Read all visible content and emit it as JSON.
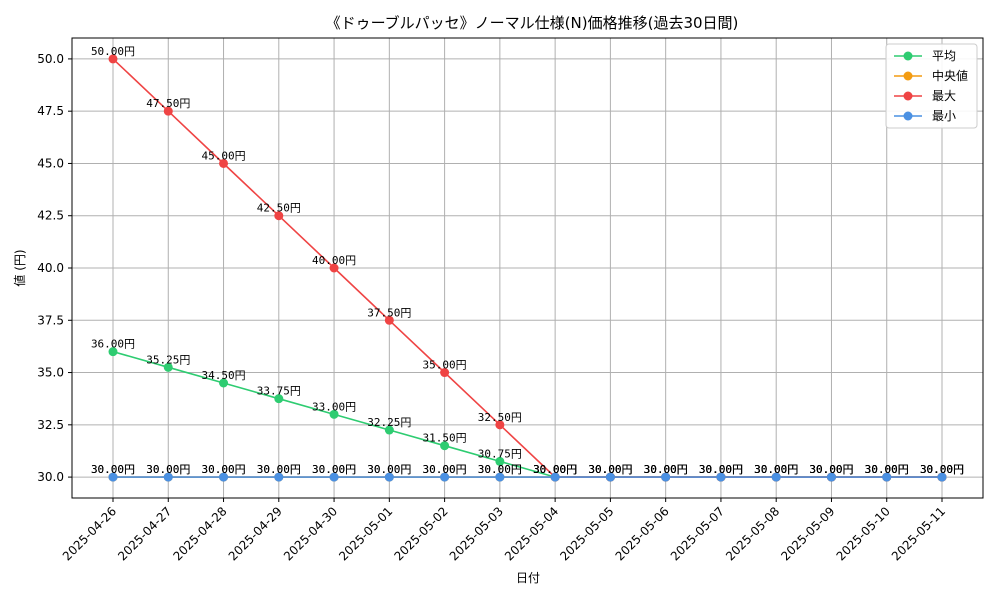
{
  "chart_data": {
    "type": "line",
    "title": "《ドゥーブルパッセ》ノーマル仕様(N)価格推移(過去30日間)",
    "xlabel": "日付",
    "ylabel": "値 (円)",
    "ylim": [
      29.0,
      51.0
    ],
    "yticks": [
      "30.0",
      "32.5",
      "35.0",
      "37.5",
      "40.0",
      "42.5",
      "45.0",
      "47.5",
      "50.0"
    ],
    "grid": true,
    "legend_position": "top-right",
    "unit_suffix": "円",
    "categories": [
      "2025-04-26",
      "2025-04-27",
      "2025-04-28",
      "2025-04-29",
      "2025-04-30",
      "2025-05-01",
      "2025-05-02",
      "2025-05-03",
      "2025-05-04",
      "2025-05-05",
      "2025-05-06",
      "2025-05-07",
      "2025-05-08",
      "2025-05-09",
      "2025-05-10",
      "2025-05-11"
    ],
    "series": [
      {
        "name": "平均",
        "color": "#2ecc71",
        "values": [
          36.0,
          35.25,
          34.5,
          33.75,
          33.0,
          32.25,
          31.5,
          30.75,
          30.0,
          30.0,
          30.0,
          30.0,
          30.0,
          30.0,
          30.0,
          30.0
        ],
        "labels": [
          "36.00円",
          "35.25円",
          "34.50円",
          "33.75円",
          "33.00円",
          "32.25円",
          "31.50円",
          "30.75円",
          "30.00円",
          "30.00円",
          "30.00円",
          "30.00円",
          "30.00円",
          "30.00円",
          "30.00円",
          "30.00円"
        ]
      },
      {
        "name": "中央値",
        "color": "#f39c12",
        "values": [
          30.0,
          30.0,
          30.0,
          30.0,
          30.0,
          30.0,
          30.0,
          30.0,
          30.0,
          30.0,
          30.0,
          30.0,
          30.0,
          30.0,
          30.0,
          30.0
        ],
        "labels": [
          "30.00円",
          "30.00円",
          "30.00円",
          "30.00円",
          "30.00円",
          "30.00円",
          "30.00円",
          "30.00円",
          "30.00円",
          "30.00円",
          "30.00円",
          "30.00円",
          "30.00円",
          "30.00円",
          "30.00円",
          "30.00円"
        ]
      },
      {
        "name": "最大",
        "color": "#ef4444",
        "values": [
          50.0,
          47.5,
          45.0,
          42.5,
          40.0,
          37.5,
          35.0,
          32.5,
          30.0,
          30.0,
          30.0,
          30.0,
          30.0,
          30.0,
          30.0,
          30.0
        ],
        "labels": [
          "50.00円",
          "47.50円",
          "45.00円",
          "42.50円",
          "40.00円",
          "37.50円",
          "35.00円",
          "32.50円",
          "30.00円",
          "30.00円",
          "30.00円",
          "30.00円",
          "30.00円",
          "30.00円",
          "30.00円",
          "30.00円"
        ]
      },
      {
        "name": "最小",
        "color": "#4a90e2",
        "values": [
          30.0,
          30.0,
          30.0,
          30.0,
          30.0,
          30.0,
          30.0,
          30.0,
          30.0,
          30.0,
          30.0,
          30.0,
          30.0,
          30.0,
          30.0,
          30.0
        ],
        "labels": [
          "30.00円",
          "30.00円",
          "30.00円",
          "30.00円",
          "30.00円",
          "30.00円",
          "30.00円",
          "30.00円",
          "30.00円",
          "30.00円",
          "30.00円",
          "30.00円",
          "30.00円",
          "30.00円",
          "30.00円",
          "30.00円"
        ]
      }
    ]
  }
}
